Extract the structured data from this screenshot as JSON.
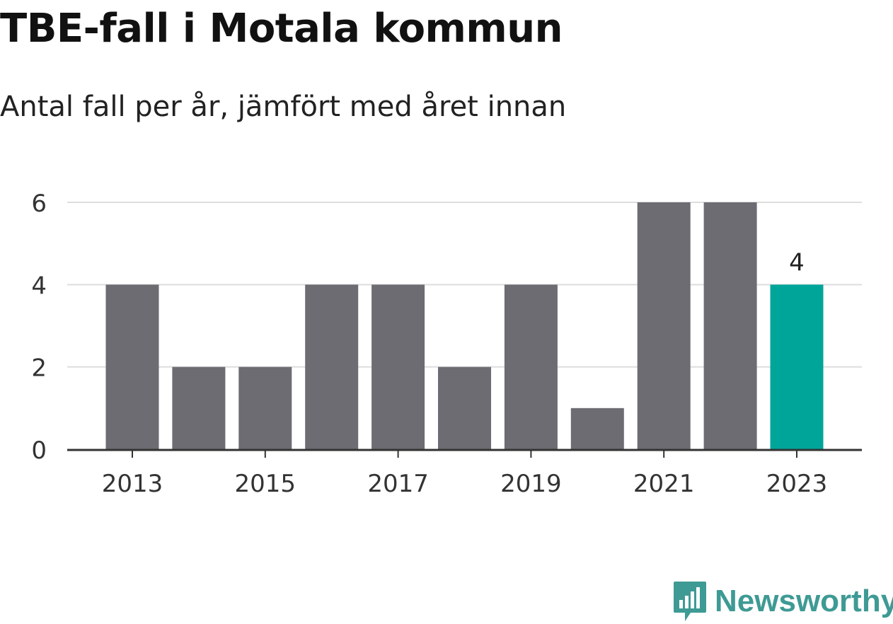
{
  "title": "TBE-fall i Motala kommun",
  "subtitle": "Antal fall per år, jämfört med året innan",
  "chart_data": {
    "type": "bar",
    "x": [
      2013,
      2014,
      2015,
      2016,
      2017,
      2018,
      2019,
      2020,
      2021,
      2022,
      2023
    ],
    "values": [
      4,
      2,
      2,
      4,
      4,
      2,
      4,
      1,
      6,
      6,
      4
    ],
    "x_tick_labels": [
      "2013",
      "2015",
      "2017",
      "2019",
      "2021",
      "2023"
    ],
    "y_ticks": [
      0,
      2,
      4,
      6
    ],
    "ylim": [
      0,
      6
    ],
    "highlight_index": 10,
    "highlight_label": "4",
    "grid": true,
    "colors": {
      "bar": "#6d6c72",
      "highlight": "#00a59a",
      "grid": "#dddddd",
      "axis": "#333333",
      "tick_text": "#333333"
    }
  },
  "brand": {
    "name": "Newsworthy",
    "color": "#3e9a94",
    "icon": "newsworthy-logo-icon"
  }
}
